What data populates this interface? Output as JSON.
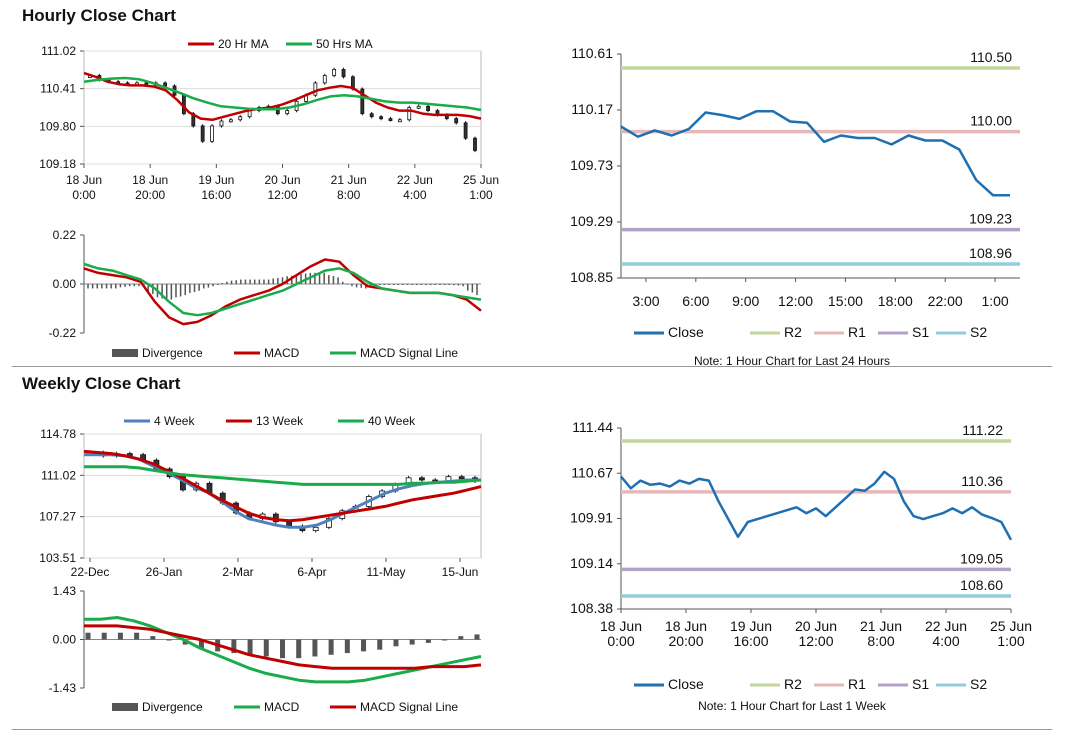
{
  "sections": {
    "hourly_title": "Hourly Close Chart",
    "weekly_title": "Weekly Close Chart"
  },
  "chart_data": [
    {
      "id": "hourly_price",
      "type": "line",
      "legend": [
        "20 Hr MA",
        "50 Hrs MA"
      ],
      "yticks": [
        "111.02",
        "110.41",
        "109.80",
        "109.18"
      ],
      "ylim": [
        109.18,
        111.02
      ],
      "xticks": [
        [
          "18 Jun",
          "0:00"
        ],
        [
          "18 Jun",
          "20:00"
        ],
        [
          "19 Jun",
          "16:00"
        ],
        [
          "20 Jun",
          "12:00"
        ],
        [
          "21 Jun",
          "8:00"
        ],
        [
          "22 Jun",
          "4:00"
        ],
        [
          "25 Jun",
          "1:00"
        ]
      ],
      "series": [
        {
          "name": "Price",
          "values": [
            110.62,
            110.55,
            110.52,
            110.5,
            110.48,
            110.5,
            110.47,
            110.5,
            110.45,
            110.3,
            110.0,
            109.8,
            109.55,
            109.8,
            109.88,
            109.9,
            109.95,
            110.05,
            110.1,
            110.12,
            110.0,
            110.05,
            110.2,
            110.3,
            110.5,
            110.62,
            110.72,
            110.6,
            110.4,
            110.0,
            109.95,
            109.92,
            109.9,
            109.9,
            110.1,
            110.12,
            110.05,
            109.98,
            109.92,
            109.85,
            109.6,
            109.4
          ]
        },
        {
          "name": "20 Hr MA",
          "color": "#c00000",
          "values": [
            110.66,
            110.6,
            110.52,
            110.48,
            110.46,
            110.46,
            110.44,
            110.38,
            110.22,
            110.02,
            109.92,
            109.9,
            109.95,
            110.0,
            110.05,
            110.08,
            110.1,
            110.15,
            110.22,
            110.3,
            110.38,
            110.42,
            110.45,
            110.42,
            110.3,
            110.18,
            110.1,
            110.05,
            110.05,
            110.0,
            109.98,
            109.98,
            109.98,
            109.96,
            109.92
          ]
        },
        {
          "name": "50 Hrs MA",
          "color": "#1aab4b",
          "values": [
            110.52,
            110.55,
            110.57,
            110.58,
            110.56,
            110.5,
            110.42,
            110.34,
            110.25,
            110.18,
            110.12,
            110.1,
            110.08,
            110.07,
            110.07,
            110.1,
            110.15,
            110.22,
            110.28,
            110.3,
            110.28,
            110.24,
            110.2,
            110.18,
            110.18,
            110.16,
            110.14,
            110.12,
            110.1,
            110.06
          ]
        }
      ]
    },
    {
      "id": "hourly_macd",
      "type": "line",
      "legend": [
        "Divergence",
        "MACD",
        "MACD Signal Line"
      ],
      "yticks": [
        "0.22",
        "0.00",
        "-0.22"
      ],
      "ylim": [
        -0.22,
        0.22
      ],
      "series": [
        {
          "name": "MACD",
          "color": "#c00000",
          "values": [
            0.07,
            0.05,
            0.04,
            0.03,
            0.01,
            -0.08,
            -0.15,
            -0.18,
            -0.17,
            -0.14,
            -0.1,
            -0.07,
            -0.05,
            -0.03,
            0.0,
            0.04,
            0.08,
            0.11,
            0.1,
            0.04,
            -0.01,
            -0.02,
            -0.03,
            -0.04,
            -0.04,
            -0.04,
            -0.05,
            -0.07,
            -0.12
          ]
        },
        {
          "name": "MACD Signal Line",
          "color": "#1aab4b",
          "values": [
            0.09,
            0.07,
            0.06,
            0.04,
            0.02,
            -0.02,
            -0.08,
            -0.13,
            -0.14,
            -0.13,
            -0.11,
            -0.09,
            -0.07,
            -0.05,
            -0.03,
            0.0,
            0.03,
            0.06,
            0.07,
            0.05,
            0.01,
            -0.02,
            -0.03,
            -0.04,
            -0.04,
            -0.04,
            -0.05,
            -0.06,
            -0.07
          ]
        },
        {
          "name": "Divergence",
          "color": "#555555",
          "values": [
            -0.02,
            -0.02,
            -0.02,
            -0.01,
            -0.01,
            -0.06,
            -0.07,
            -0.05,
            -0.03,
            -0.01,
            0.01,
            0.02,
            0.02,
            0.02,
            0.03,
            0.04,
            0.05,
            0.05,
            0.03,
            -0.01,
            -0.02,
            0.0,
            0.0,
            0.0,
            0.0,
            0.0,
            0.0,
            -0.01,
            -0.05
          ]
        }
      ]
    },
    {
      "id": "hourly_pivot",
      "type": "line",
      "yticks": [
        "110.61",
        "110.17",
        "109.73",
        "109.29",
        "108.85"
      ],
      "ylim": [
        108.85,
        110.61
      ],
      "xticks": [
        "3:00",
        "6:00",
        "9:00",
        "12:00",
        "15:00",
        "18:00",
        "22:00",
        "1:00"
      ],
      "levels": [
        {
          "name": "R2",
          "value": 110.5,
          "label": "110.50",
          "color": "#c3d69b"
        },
        {
          "name": "R1",
          "value": 110.0,
          "label": "110.00",
          "color": "#e6b9b8"
        },
        {
          "name": "S1",
          "value": 109.23,
          "label": "109.23",
          "color": "#b3a2c7"
        },
        {
          "name": "S2",
          "value": 108.96,
          "label": "108.96",
          "color": "#93cddd"
        }
      ],
      "series": [
        {
          "name": "Close",
          "color": "#1f6fb2",
          "values": [
            110.04,
            109.96,
            110.01,
            109.97,
            110.02,
            110.15,
            110.13,
            110.1,
            110.16,
            110.16,
            110.08,
            110.07,
            109.92,
            109.97,
            109.95,
            109.95,
            109.9,
            109.97,
            109.93,
            109.93,
            109.86,
            109.62,
            109.5,
            109.5
          ]
        }
      ],
      "legend": [
        "Close",
        "R2",
        "R1",
        "S1",
        "S2"
      ],
      "note": "Note: 1 Hour Chart for Last 24 Hours"
    },
    {
      "id": "weekly_price",
      "type": "line",
      "legend": [
        "4 Week",
        "13 Week",
        "40 Week"
      ],
      "yticks": [
        "114.78",
        "111.02",
        "107.27",
        "103.51"
      ],
      "ylim": [
        103.51,
        114.78
      ],
      "xticks": [
        "22-Dec",
        "26-Jan",
        "2-Mar",
        "6-Apr",
        "11-May",
        "15-Jun"
      ],
      "series": [
        {
          "name": "Price",
          "values": [
            113.1,
            112.8,
            113.0,
            112.9,
            112.4,
            111.6,
            110.9,
            109.7,
            110.3,
            109.4,
            108.5,
            107.6,
            107.1,
            107.5,
            106.8,
            106.4,
            106.0,
            106.3,
            107.1,
            107.8,
            108.2,
            109.1,
            109.6,
            110.2,
            110.8,
            110.6,
            110.5,
            110.9,
            110.8,
            110.5
          ]
        },
        {
          "name": "4 Week",
          "color": "#4f81bd",
          "values": [
            112.9,
            112.9,
            112.9,
            112.8,
            112.5,
            111.9,
            111.3,
            110.7,
            110.0,
            109.5,
            108.7,
            107.8,
            107.1,
            106.8,
            106.5,
            106.3,
            106.3,
            106.5,
            107.0,
            107.6,
            108.2,
            108.8,
            109.4,
            109.8,
            110.1,
            110.3,
            110.4,
            110.5,
            110.6,
            110.6
          ]
        },
        {
          "name": "13 Week",
          "color": "#c00000",
          "values": [
            113.2,
            113.1,
            113.0,
            112.8,
            112.5,
            112.1,
            111.5,
            110.9,
            110.2,
            109.5,
            108.8,
            108.2,
            107.6,
            107.2,
            107.0,
            106.9,
            107.0,
            107.2,
            107.4,
            107.6,
            107.8,
            108.0,
            108.2,
            108.5,
            108.8,
            109.0,
            109.2,
            109.4,
            109.7,
            110.0
          ]
        },
        {
          "name": "40 Week",
          "color": "#1aab4b",
          "values": [
            111.8,
            111.8,
            111.8,
            111.8,
            111.7,
            111.5,
            111.3,
            111.1,
            111.0,
            110.9,
            110.8,
            110.7,
            110.6,
            110.5,
            110.4,
            110.3,
            110.2,
            110.2,
            110.2,
            110.2,
            110.2,
            110.2,
            110.2,
            110.2,
            110.3,
            110.3,
            110.4,
            110.4,
            110.5,
            110.6
          ]
        }
      ]
    },
    {
      "id": "weekly_macd",
      "type": "line",
      "legend": [
        "Divergence",
        "MACD",
        "MACD Signal Line"
      ],
      "yticks": [
        "1.43",
        "0.00",
        "-1.43"
      ],
      "ylim": [
        -1.43,
        1.43
      ],
      "series": [
        {
          "name": "MACD",
          "color": "#1aab4b",
          "values": [
            0.6,
            0.6,
            0.65,
            0.55,
            0.4,
            0.2,
            0.0,
            -0.25,
            -0.45,
            -0.65,
            -0.85,
            -1.0,
            -1.1,
            -1.2,
            -1.25,
            -1.25,
            -1.25,
            -1.2,
            -1.1,
            -1.0,
            -0.9,
            -0.8,
            -0.7,
            -0.6,
            -0.5
          ]
        },
        {
          "name": "MACD Signal Line",
          "color": "#c00000",
          "values": [
            0.4,
            0.4,
            0.4,
            0.35,
            0.3,
            0.2,
            0.1,
            0.0,
            -0.15,
            -0.3,
            -0.45,
            -0.55,
            -0.65,
            -0.75,
            -0.8,
            -0.85,
            -0.85,
            -0.85,
            -0.85,
            -0.85,
            -0.85,
            -0.8,
            -0.8,
            -0.8,
            -0.75
          ]
        },
        {
          "name": "Divergence",
          "color": "#555555",
          "values": [
            0.2,
            0.2,
            0.2,
            0.2,
            0.1,
            0.0,
            -0.15,
            -0.25,
            -0.35,
            -0.4,
            -0.45,
            -0.5,
            -0.55,
            -0.55,
            -0.5,
            -0.45,
            -0.4,
            -0.35,
            -0.3,
            -0.2,
            -0.15,
            -0.1,
            0.0,
            0.1,
            0.15
          ]
        }
      ]
    },
    {
      "id": "weekly_pivot",
      "type": "line",
      "yticks": [
        "111.44",
        "110.67",
        "109.91",
        "109.14",
        "108.38"
      ],
      "ylim": [
        108.38,
        111.44
      ],
      "xticks": [
        [
          "18 Jun",
          "0:00"
        ],
        [
          "18 Jun",
          "20:00"
        ],
        [
          "19 Jun",
          "16:00"
        ],
        [
          "20 Jun",
          "12:00"
        ],
        [
          "21 Jun",
          "8:00"
        ],
        [
          "22 Jun",
          "4:00"
        ],
        [
          "25 Jun",
          "1:00"
        ]
      ],
      "levels": [
        {
          "name": "R2",
          "value": 111.22,
          "label": "111.22",
          "color": "#c3d69b"
        },
        {
          "name": "R1",
          "value": 110.36,
          "label": "110.36",
          "color": "#e6b9b8"
        },
        {
          "name": "S1",
          "value": 109.05,
          "label": "109.05",
          "color": "#b3a2c7"
        },
        {
          "name": "S2",
          "value": 108.6,
          "label": "108.60",
          "color": "#93cddd"
        }
      ],
      "series": [
        {
          "name": "Close",
          "color": "#1f6fb2",
          "values": [
            110.62,
            110.42,
            110.55,
            110.48,
            110.5,
            110.45,
            110.55,
            110.5,
            110.58,
            110.55,
            110.2,
            109.9,
            109.6,
            109.85,
            109.9,
            109.95,
            110.0,
            110.05,
            110.1,
            110.0,
            110.08,
            109.95,
            110.1,
            110.25,
            110.4,
            110.38,
            110.5,
            110.7,
            110.58,
            110.2,
            109.95,
            109.9,
            109.95,
            110.0,
            110.08,
            110.0,
            110.1,
            109.98,
            109.92,
            109.85,
            109.55
          ]
        }
      ],
      "legend": [
        "Close",
        "R2",
        "R1",
        "S1",
        "S2"
      ],
      "note": "Note: 1 Hour Chart for Last 1 Week"
    }
  ]
}
